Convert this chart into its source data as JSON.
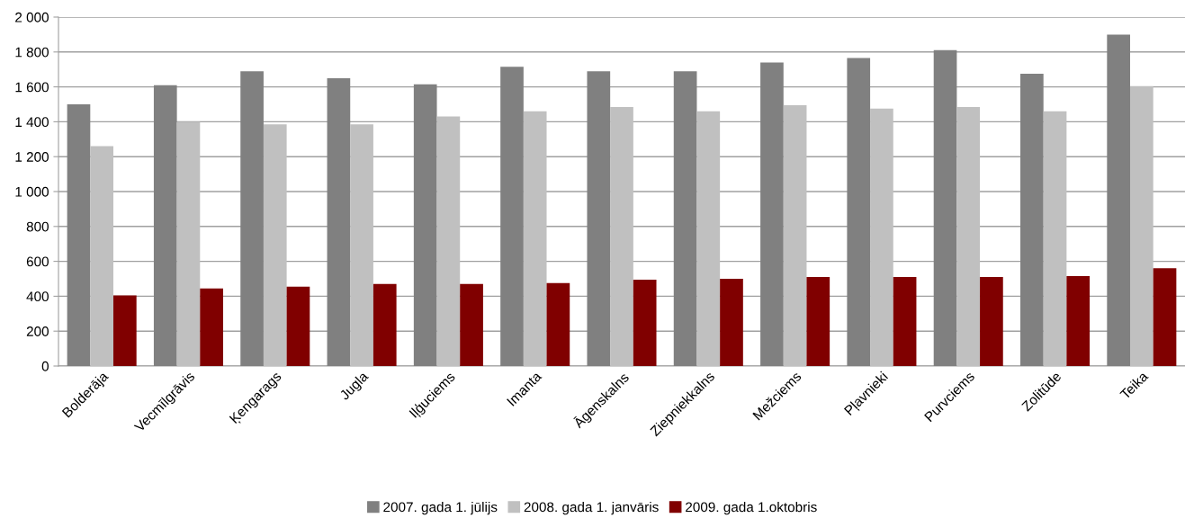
{
  "chart_data": {
    "type": "bar",
    "categories": [
      "Bolderāja",
      "Vecmīlgrāvis",
      "Ķengarags",
      "Jugla",
      "Iļģuciems",
      "Imanta",
      "Āgenskalns",
      "Ziepniekkalns",
      "Mežciems",
      "Pļavnieki",
      "Purvciems",
      "Zolitūde",
      "Teika"
    ],
    "series": [
      {
        "name": "2007. gada 1. jūlijs",
        "color": "#808080",
        "values": [
          1500,
          1610,
          1690,
          1650,
          1615,
          1715,
          1690,
          1690,
          1740,
          1765,
          1810,
          1675,
          1900
        ]
      },
      {
        "name": "2008. gada 1. janvāris",
        "color": "#c0c0c0",
        "values": [
          1260,
          1400,
          1385,
          1385,
          1430,
          1460,
          1485,
          1460,
          1495,
          1475,
          1485,
          1460,
          1605
        ]
      },
      {
        "name": "2009. gada 1.oktobris",
        "color": "#800000",
        "values": [
          405,
          445,
          455,
          470,
          470,
          475,
          495,
          500,
          510,
          510,
          510,
          515,
          560
        ]
      }
    ],
    "ylim": [
      0,
      2000
    ],
    "yticks": [
      0,
      200,
      400,
      600,
      800,
      {
        "value": 1000,
        "label": "1 000"
      },
      {
        "value": 1200,
        "label": "1 200"
      },
      {
        "value": 1400,
        "label": "1 400"
      },
      {
        "value": 1600,
        "label": "1 600"
      },
      {
        "value": 1800,
        "label": "1 800"
      },
      {
        "value": 2000,
        "label": "2 000"
      }
    ],
    "grid": "y",
    "legend": "bottom"
  }
}
